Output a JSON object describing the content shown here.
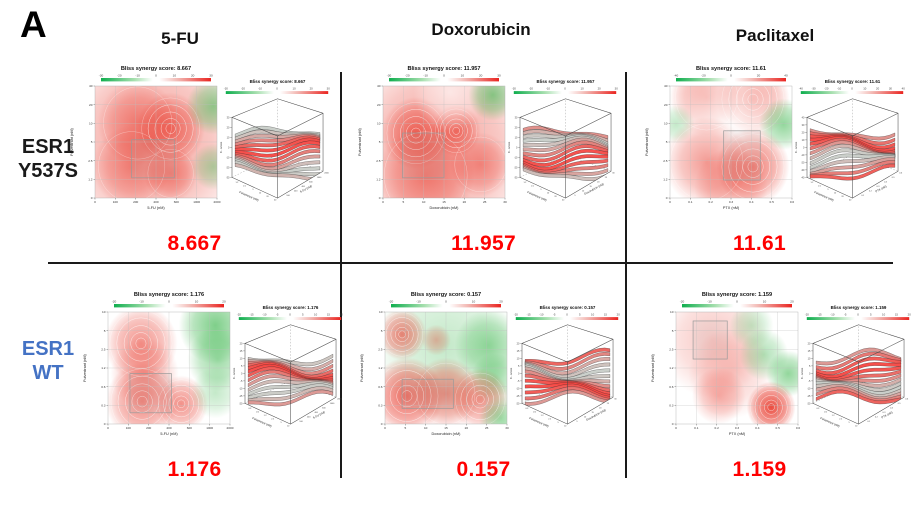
{
  "figure_label": "A",
  "columns": [
    {
      "label": "5-FU"
    },
    {
      "label": "Doxorubicin"
    },
    {
      "label": "Paclitaxel"
    }
  ],
  "rows": [
    {
      "line1": "ESR1",
      "line2": "Y537S",
      "color": "#1a1a1a"
    },
    {
      "line1": "ESR1",
      "line2": "WT",
      "color": "#4472c4"
    }
  ],
  "colors": {
    "score_text": "#ff0000",
    "synergy_red": "#e8382a",
    "antagonism_green": "#39b54a",
    "colorbar_green": "#0fae4e",
    "colorbar_red": "#ea2420",
    "divider": "#1a1a1a"
  },
  "chart_data": [
    {
      "id": "y537s-5fu",
      "type": "heatmap",
      "row_label": "ESR1 Y537S",
      "column_label": "5-FU",
      "title_2d": "Bliss synergy score: 8.667",
      "title_3d": "Bliss synergy score: 8.667",
      "score": "8.667",
      "colorbar": {
        "min": -30,
        "max": 30,
        "ticks_2d": [
          "-30",
          "-20",
          "-10",
          "0",
          "10",
          "20",
          "30"
        ],
        "ticks_3d": [
          "-30",
          "-20",
          "-10",
          "0",
          "10",
          "20",
          "30"
        ]
      },
      "x_axis": {
        "label": "5-FU (nM)",
        "ticks": [
          "0",
          "100",
          "200",
          "400",
          "600",
          "1000",
          "2000"
        ]
      },
      "y_axis": {
        "label": "Fulvestrant (nM)",
        "ticks": [
          "0",
          "1.2",
          "2.5",
          "5",
          "10",
          "20",
          "40"
        ]
      },
      "z_axis": {
        "label": "δ - score",
        "ticks": [
          "-30",
          "-20",
          "-10",
          "0",
          "10",
          "20",
          "30"
        ]
      },
      "highlight_rect": {
        "x": 0.3,
        "y": 0.48,
        "w": 0.35,
        "h": 0.34
      },
      "blobs": [
        {
          "x": 0.45,
          "y": 0.5,
          "r": 0.85,
          "c": "r",
          "a": 0.5
        },
        {
          "x": 0.35,
          "y": 0.33,
          "r": 0.33,
          "c": "r",
          "a": 0.45
        },
        {
          "x": 0.62,
          "y": 0.38,
          "r": 0.28,
          "c": "r",
          "a": 0.6,
          "rings": true
        },
        {
          "x": 0.3,
          "y": 0.72,
          "r": 0.32,
          "c": "r",
          "a": 0.45
        },
        {
          "x": 0.62,
          "y": 0.78,
          "r": 0.22,
          "c": "r",
          "a": 0.5
        },
        {
          "x": 0.97,
          "y": 0.18,
          "r": 0.22,
          "c": "g",
          "a": 0.55
        },
        {
          "x": 0.97,
          "y": 0.72,
          "r": 0.18,
          "c": "g",
          "a": 0.4
        }
      ],
      "seed": 1.3
    },
    {
      "id": "y537s-doxorubicin",
      "type": "heatmap",
      "row_label": "ESR1 Y537S",
      "column_label": "Doxorubicin",
      "title_2d": "Bliss synergy score: 11.957",
      "title_3d": "Bliss synergy score: 11.957",
      "score": "11.957",
      "colorbar": {
        "min": -30,
        "max": 30,
        "ticks_2d": [
          "-30",
          "-20",
          "-10",
          "0",
          "10",
          "20",
          "30"
        ],
        "ticks_3d": [
          "-30",
          "-20",
          "-10",
          "0",
          "10",
          "20",
          "30"
        ]
      },
      "x_axis": {
        "label": "Doxorubicin (nM)",
        "ticks": [
          "0",
          "5",
          "10",
          "15",
          "20",
          "25",
          "30"
        ]
      },
      "y_axis": {
        "label": "Fulvestrant (nM)",
        "ticks": [
          "0",
          "1.2",
          "2.5",
          "5",
          "10",
          "20",
          "40"
        ]
      },
      "z_axis": {
        "label": "δ - score",
        "ticks": [
          "-30",
          "-20",
          "-10",
          "0",
          "10",
          "20",
          "30"
        ]
      },
      "highlight_rect": {
        "x": 0.16,
        "y": 0.42,
        "w": 0.34,
        "h": 0.4
      },
      "blobs": [
        {
          "x": 0.45,
          "y": 0.55,
          "r": 0.85,
          "c": "r",
          "a": 0.5
        },
        {
          "x": 0.27,
          "y": 0.42,
          "r": 0.28,
          "c": "r",
          "a": 0.65,
          "rings": true
        },
        {
          "x": 0.6,
          "y": 0.4,
          "r": 0.2,
          "c": "r",
          "a": 0.6,
          "rings": true
        },
        {
          "x": 0.35,
          "y": 0.8,
          "r": 0.4,
          "c": "r",
          "a": 0.5
        },
        {
          "x": 0.8,
          "y": 0.7,
          "r": 0.25,
          "c": "r",
          "a": 0.45
        },
        {
          "x": 0.55,
          "y": 0.06,
          "r": 0.3,
          "c": "w",
          "a": 0.6
        },
        {
          "x": 0.9,
          "y": 0.08,
          "r": 0.2,
          "c": "g",
          "a": 0.6
        }
      ],
      "seed": 2.1
    },
    {
      "id": "y537s-paclitaxel",
      "type": "heatmap",
      "row_label": "ESR1 Y537S",
      "column_label": "Paclitaxel",
      "title_2d": "Bliss synergy score: 11.61",
      "title_3d": "Bliss synergy score: 11.61",
      "score": "11.61",
      "colorbar": {
        "min": -40,
        "max": 40,
        "ticks_2d": [
          "-40",
          "-20",
          "0",
          "20",
          "40"
        ],
        "ticks_3d": [
          "-40",
          "-30",
          "-20",
          "-10",
          "0",
          "10",
          "20",
          "30",
          "40"
        ]
      },
      "x_axis": {
        "label": "PTX (nM)",
        "ticks": [
          "0",
          "0.1",
          "0.2",
          "0.3",
          "0.4",
          "0.5",
          "0.6"
        ]
      },
      "y_axis": {
        "label": "Fulvestrant (nM)",
        "ticks": [
          "0",
          "1.2",
          "2.5",
          "5",
          "10",
          "20",
          "40"
        ]
      },
      "z_axis": {
        "label": "δ - score",
        "ticks": [
          "-40",
          "-30",
          "-20",
          "-10",
          "0",
          "10",
          "20",
          "30",
          "40"
        ]
      },
      "highlight_rect": {
        "x": 0.44,
        "y": 0.4,
        "w": 0.3,
        "h": 0.44
      },
      "blobs": [
        {
          "x": 0.3,
          "y": 0.1,
          "r": 0.3,
          "c": "r",
          "a": 0.55
        },
        {
          "x": 0.68,
          "y": 0.12,
          "r": 0.3,
          "c": "r",
          "a": 0.6,
          "rings": true
        },
        {
          "x": 0.5,
          "y": 0.34,
          "r": 0.5,
          "c": "w",
          "a": 0.75
        },
        {
          "x": 0.93,
          "y": 0.34,
          "r": 0.2,
          "c": "g",
          "a": 0.55
        },
        {
          "x": 0.05,
          "y": 0.34,
          "r": 0.15,
          "c": "g",
          "a": 0.3
        },
        {
          "x": 0.3,
          "y": 0.68,
          "r": 0.35,
          "c": "r",
          "a": 0.5
        },
        {
          "x": 0.68,
          "y": 0.72,
          "r": 0.3,
          "c": "r",
          "a": 0.65,
          "rings": true
        },
        {
          "x": 0.5,
          "y": 0.9,
          "r": 0.3,
          "c": "r",
          "a": 0.4
        }
      ],
      "seed": 3.7
    },
    {
      "id": "wt-5fu",
      "type": "heatmap",
      "row_label": "ESR1 WT",
      "column_label": "5-FU",
      "title_2d": "Bliss synergy score: 1.176",
      "title_3d": "Bliss synergy score: 1.176",
      "score": "1.176",
      "colorbar": {
        "min": -20,
        "max": 20,
        "ticks_2d": [
          "-20",
          "-10",
          "0",
          "10",
          "20"
        ],
        "ticks_3d": [
          "-20",
          "-15",
          "-10",
          "-5",
          "0",
          "5",
          "10",
          "15",
          "20"
        ]
      },
      "x_axis": {
        "label": "5-FU (nM)",
        "ticks": [
          "0",
          "100",
          "200",
          "400",
          "600",
          "1000",
          "2000"
        ]
      },
      "y_axis": {
        "label": "Fulvestrant (nM)",
        "ticks": [
          "0",
          "0.3",
          "0.6",
          "1.2",
          "2.5",
          "5",
          "10"
        ]
      },
      "z_axis": {
        "label": "δ - score",
        "ticks": [
          "-20",
          "-15",
          "-10",
          "-5",
          "0",
          "5",
          "10",
          "15",
          "20"
        ]
      },
      "highlight_rect": {
        "x": 0.18,
        "y": 0.55,
        "w": 0.34,
        "h": 0.35
      },
      "blobs": [
        {
          "x": 0.27,
          "y": 0.28,
          "r": 0.3,
          "c": "r",
          "a": 0.55,
          "rings": true
        },
        {
          "x": 0.3,
          "y": 0.55,
          "r": 0.28,
          "c": "r",
          "a": 0.4
        },
        {
          "x": 0.28,
          "y": 0.8,
          "r": 0.3,
          "c": "r",
          "a": 0.6,
          "rings": true
        },
        {
          "x": 0.6,
          "y": 0.82,
          "r": 0.22,
          "c": "r",
          "a": 0.55,
          "rings": true
        },
        {
          "x": 0.88,
          "y": 0.12,
          "r": 0.3,
          "c": "g",
          "a": 0.65
        },
        {
          "x": 0.9,
          "y": 0.42,
          "r": 0.25,
          "c": "g",
          "a": 0.5
        },
        {
          "x": 0.88,
          "y": 0.72,
          "r": 0.2,
          "c": "g",
          "a": 0.3
        }
      ],
      "seed": 4.2
    },
    {
      "id": "wt-doxorubicin",
      "type": "heatmap",
      "row_label": "ESR1 WT",
      "column_label": "Doxorubicin",
      "title_2d": "Bliss synergy score: 0.157",
      "title_3d": "Bliss synergy score: 0.157",
      "score": "0.157",
      "colorbar": {
        "min": -20,
        "max": 20,
        "ticks_2d": [
          "-20",
          "-10",
          "0",
          "10",
          "20"
        ],
        "ticks_3d": [
          "-20",
          "-15",
          "-10",
          "-5",
          "0",
          "5",
          "10",
          "15",
          "20"
        ]
      },
      "x_axis": {
        "label": "Doxorubicin (nM)",
        "ticks": [
          "0",
          "5",
          "10",
          "15",
          "20",
          "25",
          "30"
        ]
      },
      "y_axis": {
        "label": "Fulvestrant (nM)",
        "ticks": [
          "0",
          "0.3",
          "0.6",
          "1.2",
          "2.5",
          "5",
          "10"
        ]
      },
      "z_axis": {
        "label": "δ - score",
        "ticks": [
          "-20",
          "-15",
          "-10",
          "-5",
          "0",
          "5",
          "10",
          "15",
          "20"
        ]
      },
      "highlight_rect": {
        "x": 0.14,
        "y": 0.6,
        "w": 0.42,
        "h": 0.26
      },
      "blobs": [
        {
          "x": 0.5,
          "y": 0.3,
          "r": 0.6,
          "c": "g",
          "a": 0.3
        },
        {
          "x": 0.14,
          "y": 0.2,
          "r": 0.2,
          "c": "r",
          "a": 0.6,
          "rings": true
        },
        {
          "x": 0.42,
          "y": 0.25,
          "r": 0.12,
          "c": "r",
          "a": 0.35
        },
        {
          "x": 0.85,
          "y": 0.3,
          "r": 0.28,
          "c": "g",
          "a": 0.5
        },
        {
          "x": 0.9,
          "y": 0.6,
          "r": 0.2,
          "c": "g",
          "a": 0.45
        },
        {
          "x": 0.18,
          "y": 0.75,
          "r": 0.3,
          "c": "r",
          "a": 0.75,
          "rings": true
        },
        {
          "x": 0.5,
          "y": 0.73,
          "r": 0.28,
          "c": "r",
          "a": 0.6
        },
        {
          "x": 0.78,
          "y": 0.78,
          "r": 0.24,
          "c": "r",
          "a": 0.55,
          "rings": true
        },
        {
          "x": 0.95,
          "y": 0.95,
          "r": 0.18,
          "c": "g",
          "a": 0.5
        }
      ],
      "seed": 5.6
    },
    {
      "id": "wt-paclitaxel",
      "type": "heatmap",
      "row_label": "ESR1 WT",
      "column_label": "Paclitaxel",
      "title_2d": "Bliss synergy score: 1.159",
      "title_3d": "Bliss synergy score: 1.159",
      "score": "1.159",
      "colorbar": {
        "min": -20,
        "max": 20,
        "ticks_2d": [
          "-20",
          "-10",
          "0",
          "10",
          "20"
        ],
        "ticks_3d": [
          "-20",
          "-15",
          "-10",
          "-5",
          "0",
          "5",
          "10",
          "15",
          "20"
        ]
      },
      "x_axis": {
        "label": "PTX (nM)",
        "ticks": [
          "0",
          "0.1",
          "0.2",
          "0.3",
          "0.4",
          "0.5",
          "0.6"
        ]
      },
      "y_axis": {
        "label": "Fulvestrant (nM)",
        "ticks": [
          "0",
          "0.3",
          "0.6",
          "1.2",
          "2.5",
          "5",
          "10"
        ]
      },
      "z_axis": {
        "label": "δ - score",
        "ticks": [
          "-20",
          "-15",
          "-10",
          "-5",
          "0",
          "5",
          "10",
          "15",
          "20"
        ]
      },
      "highlight_rect": {
        "x": 0.14,
        "y": 0.08,
        "w": 0.28,
        "h": 0.34
      },
      "blobs": [
        {
          "x": 0.3,
          "y": 0.25,
          "r": 0.45,
          "c": "r",
          "a": 0.28
        },
        {
          "x": 0.45,
          "y": 0.55,
          "r": 0.35,
          "c": "r",
          "a": 0.25
        },
        {
          "x": 0.62,
          "y": 0.12,
          "r": 0.18,
          "c": "g",
          "a": 0.3
        },
        {
          "x": 0.72,
          "y": 0.38,
          "r": 0.2,
          "c": "g",
          "a": 0.4
        },
        {
          "x": 0.92,
          "y": 0.55,
          "r": 0.18,
          "c": "g",
          "a": 0.55
        },
        {
          "x": 0.35,
          "y": 0.75,
          "r": 0.22,
          "c": "r",
          "a": 0.35
        },
        {
          "x": 0.78,
          "y": 0.85,
          "r": 0.2,
          "c": "r",
          "a": 0.9,
          "rings": true
        }
      ],
      "seed": 6.9
    }
  ]
}
